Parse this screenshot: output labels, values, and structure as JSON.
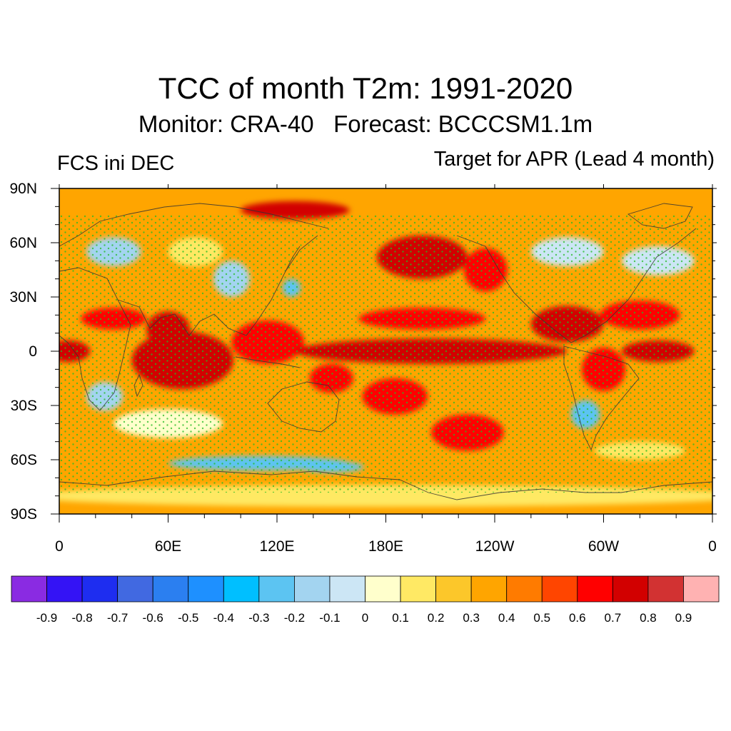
{
  "title": "TCC of month T2m: 1991-2020",
  "subtitle": "Monitor: CRA-40   Forecast: BCCCSM1.1m",
  "left_label": "FCS ini DEC",
  "right_label": "Target for APR (Lead 4 month)",
  "axes": {
    "y_ticks": [
      {
        "lat": 90,
        "label": "90N"
      },
      {
        "lat": 60,
        "label": "60N"
      },
      {
        "lat": 30,
        "label": "30N"
      },
      {
        "lat": 0,
        "label": "0"
      },
      {
        "lat": -30,
        "label": "30S"
      },
      {
        "lat": -60,
        "label": "60S"
      },
      {
        "lat": -90,
        "label": "90S"
      }
    ],
    "x_ticks": [
      {
        "lon": 0,
        "label": "0"
      },
      {
        "lon": 60,
        "label": "60E"
      },
      {
        "lon": 120,
        "label": "120E"
      },
      {
        "lon": 180,
        "label": "180E"
      },
      {
        "lon": 240,
        "label": "120W"
      },
      {
        "lon": 300,
        "label": "60W"
      },
      {
        "lon": 360,
        "label": "0"
      }
    ]
  },
  "colorbar": {
    "colors": [
      "#8a2be2",
      "#3413f5",
      "#1e2df0",
      "#4169e1",
      "#2b7ff0",
      "#1e90ff",
      "#00bfff",
      "#5cc4f2",
      "#a3d4f0",
      "#cce6f5",
      "#ffffcc",
      "#ffe964",
      "#fcc72a",
      "#ffa500",
      "#ff7b00",
      "#ff4500",
      "#ff0000",
      "#d20000",
      "#d23232",
      "#ffb2b2"
    ],
    "labels": [
      "-0.9",
      "-0.8",
      "-0.7",
      "-0.6",
      "-0.5",
      "-0.4",
      "-0.3",
      "-0.2",
      "-0.1",
      "0",
      "0.1",
      "0.2",
      "0.3",
      "0.4",
      "0.5",
      "0.6",
      "0.7",
      "0.8",
      "0.9"
    ]
  },
  "chart_data": {
    "type": "heatmap",
    "title": "TCC of month T2m: 1991-2020",
    "subtitle": "Monitor: CRA-40   Forecast: BCCCSM1.1m",
    "lon_range": [
      0,
      360
    ],
    "lat_range": [
      -90,
      90
    ],
    "value_levels": [
      -0.9,
      -0.8,
      -0.7,
      -0.6,
      -0.5,
      -0.4,
      -0.3,
      -0.2,
      -0.1,
      0,
      0.1,
      0.2,
      0.3,
      0.4,
      0.5,
      0.6,
      0.7,
      0.8,
      0.9
    ],
    "background_value": 0.3,
    "regions": [
      {
        "name": "tropical-indian-ocean",
        "lon": 68,
        "lat": -5,
        "rlon": 28,
        "rlat": 16,
        "value": 0.75
      },
      {
        "name": "arabian-sea",
        "lon": 60,
        "lat": 12,
        "rlon": 12,
        "rlat": 10,
        "value": 0.7
      },
      {
        "name": "north-africa",
        "lon": 30,
        "lat": 18,
        "rlon": 18,
        "rlat": 6,
        "value": 0.6
      },
      {
        "name": "west-africa-coast",
        "lon": 5,
        "lat": 0,
        "rlon": 12,
        "rlat": 6,
        "value": 0.7
      },
      {
        "name": "southeast-asia",
        "lon": 115,
        "lat": 5,
        "rlon": 20,
        "rlat": 12,
        "value": 0.65
      },
      {
        "name": "equatorial-pacific",
        "lon": 205,
        "lat": 0,
        "rlon": 75,
        "rlat": 7,
        "value": 0.75
      },
      {
        "name": "north-tropical-pacific",
        "lon": 200,
        "lat": 18,
        "rlon": 35,
        "rlat": 6,
        "value": 0.65
      },
      {
        "name": "north-pacific",
        "lon": 200,
        "lat": 52,
        "rlon": 25,
        "rlat": 12,
        "value": 0.7
      },
      {
        "name": "north-america-west",
        "lon": 235,
        "lat": 45,
        "rlon": 12,
        "rlat": 12,
        "value": 0.6
      },
      {
        "name": "arctic-siberia",
        "lon": 130,
        "lat": 78,
        "rlon": 30,
        "rlat": 5,
        "value": 0.7
      },
      {
        "name": "central-america",
        "lon": 280,
        "lat": 15,
        "rlon": 20,
        "rlat": 10,
        "value": 0.75
      },
      {
        "name": "equatorial-atlantic",
        "lon": 330,
        "lat": 0,
        "rlon": 20,
        "rlat": 6,
        "value": 0.7
      },
      {
        "name": "tropical-atlantic-north",
        "lon": 320,
        "lat": 20,
        "rlon": 22,
        "rlat": 8,
        "value": 0.6
      },
      {
        "name": "south-pacific-east",
        "lon": 225,
        "lat": -45,
        "rlon": 20,
        "rlat": 10,
        "value": 0.6
      },
      {
        "name": "south-pacific-central",
        "lon": 185,
        "lat": -25,
        "rlon": 18,
        "rlat": 10,
        "value": 0.6
      },
      {
        "name": "tasman-region",
        "lon": 150,
        "lat": -15,
        "rlon": 12,
        "rlat": 8,
        "value": 0.6
      },
      {
        "name": "south-america-north",
        "lon": 300,
        "lat": -10,
        "rlon": 12,
        "rlat": 12,
        "value": 0.6
      },
      {
        "name": "southern-ocean-indian",
        "lon": 60,
        "lat": -40,
        "rlon": 30,
        "rlat": 8,
        "value": 0.05
      },
      {
        "name": "southern-ocean-south",
        "lon": 110,
        "lat": -62,
        "rlon": 50,
        "rlat": 4,
        "value": -0.25
      },
      {
        "name": "south-pacific-ice",
        "lon": 150,
        "lat": -64,
        "rlon": 18,
        "rlat": 3,
        "value": -0.3
      },
      {
        "name": "antarctica",
        "lon": 180,
        "lat": -80,
        "rlon": 200,
        "rlat": 6,
        "value": 0.15
      },
      {
        "name": "europe",
        "lon": 30,
        "lat": 55,
        "rlon": 15,
        "rlat": 8,
        "value": -0.15
      },
      {
        "name": "east-asia",
        "lon": 95,
        "lat": 40,
        "rlon": 10,
        "rlat": 10,
        "value": -0.2
      },
      {
        "name": "korea-japan",
        "lon": 128,
        "lat": 35,
        "rlon": 5,
        "rlat": 5,
        "value": -0.3
      },
      {
        "name": "central-asia-north",
        "lon": 75,
        "lat": 55,
        "rlon": 15,
        "rlat": 8,
        "value": 0.1
      },
      {
        "name": "canada-east",
        "lon": 280,
        "lat": 55,
        "rlon": 20,
        "rlat": 8,
        "value": -0.1
      },
      {
        "name": "north-atlantic",
        "lon": 330,
        "lat": 50,
        "rlon": 20,
        "rlat": 8,
        "value": -0.1
      },
      {
        "name": "southern-africa",
        "lon": 25,
        "lat": -25,
        "rlon": 10,
        "rlat": 8,
        "value": -0.2
      },
      {
        "name": "south-america-south",
        "lon": 290,
        "lat": -35,
        "rlon": 8,
        "rlat": 8,
        "value": -0.3
      },
      {
        "name": "southern-ocean-atlantic",
        "lon": 320,
        "lat": -55,
        "rlon": 25,
        "rlat": 5,
        "value": 0.1
      }
    ]
  }
}
